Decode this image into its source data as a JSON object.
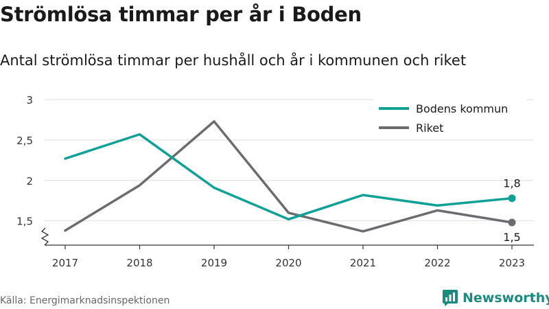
{
  "title": "Strömlösa timmar per år i Boden",
  "subtitle": "Antal strömlösa timmar per hushåll och år i kommunen och riket",
  "source": "Källa: Energimarknadsinspektionen",
  "brand": {
    "name": "Newsworthy",
    "icon": "newsworthy-logo-icon",
    "color": "#1b8a7f"
  },
  "chart_data": {
    "type": "line",
    "categories": [
      "2017",
      "2018",
      "2019",
      "2020",
      "2021",
      "2022",
      "2023"
    ],
    "series": [
      {
        "name": "Bodens kommun",
        "color": "#0fa195",
        "values": [
          2.27,
          2.57,
          1.91,
          1.52,
          1.82,
          1.69,
          1.78
        ]
      },
      {
        "name": "Riket",
        "color": "#6d6b70",
        "values": [
          1.38,
          1.94,
          2.73,
          1.6,
          1.37,
          1.63,
          1.48
        ]
      }
    ],
    "end_labels": [
      "1,8",
      "1,5"
    ],
    "y_ticks": [
      {
        "value": 1.5,
        "label": "1,5"
      },
      {
        "value": 2,
        "label": "2"
      },
      {
        "value": 2.5,
        "label": "2,5"
      },
      {
        "value": 3,
        "label": "3"
      }
    ],
    "ylim": [
      1.2,
      3
    ],
    "y_axis_break": true,
    "grid": true,
    "legend_position": "top-right"
  }
}
